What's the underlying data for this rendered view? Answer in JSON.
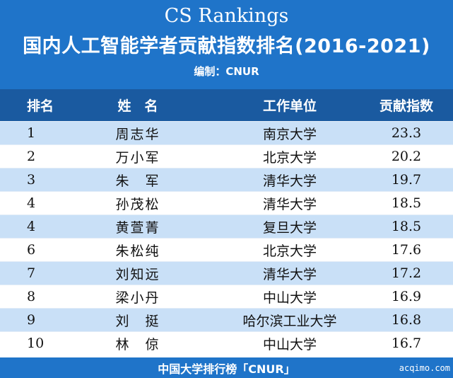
{
  "header": {
    "title_en": "CS Rankings",
    "title_cn": "国内人工智能学者贡献指数排名(2016-2021)",
    "editor": "编制：CNUR"
  },
  "columns": {
    "rank": "排名",
    "name": "姓　名",
    "unit": "工作单位",
    "index": "贡献指数"
  },
  "rows": [
    {
      "rank": "1",
      "name": "周志华",
      "unit": "南京大学",
      "index": "23.3"
    },
    {
      "rank": "2",
      "name": "万小军",
      "unit": "北京大学",
      "index": "20.2"
    },
    {
      "rank": "3",
      "name": "朱　军",
      "unit": "清华大学",
      "index": "19.7"
    },
    {
      "rank": "4",
      "name": "孙茂松",
      "unit": "清华大学",
      "index": "18.5"
    },
    {
      "rank": "4",
      "name": "黄萱菁",
      "unit": "复旦大学",
      "index": "18.5"
    },
    {
      "rank": "6",
      "name": "朱松纯",
      "unit": "北京大学",
      "index": "17.6"
    },
    {
      "rank": "7",
      "name": "刘知远",
      "unit": "清华大学",
      "index": "17.2"
    },
    {
      "rank": "8",
      "name": "梁小丹",
      "unit": "中山大学",
      "index": "16.9"
    },
    {
      "rank": "9",
      "name": "刘　挺",
      "unit": "哈尔滨工业大学",
      "index": "16.8"
    },
    {
      "rank": "10",
      "name": "林　倞",
      "unit": "中山大学",
      "index": "16.7"
    }
  ],
  "footer": {
    "text": "中国大学排行榜「CNUR」",
    "watermark": "acqimo.com"
  },
  "colors": {
    "header_bg": "#1f74c9",
    "col_head_bg": "#1a5aa0",
    "row_alt_bg": "#c9e0f7"
  }
}
